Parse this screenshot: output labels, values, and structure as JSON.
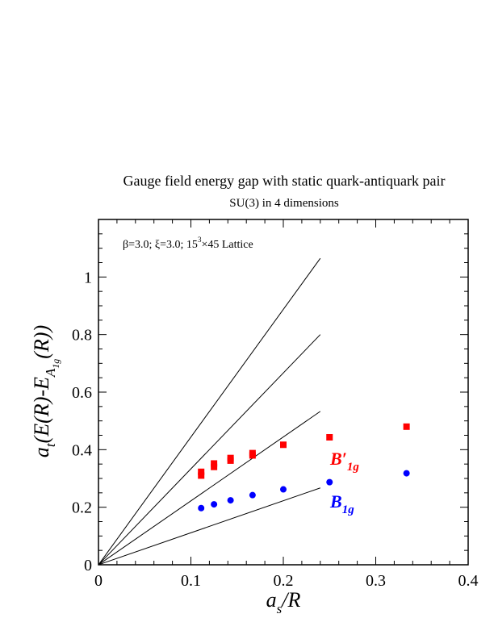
{
  "chart_data": {
    "type": "scatter",
    "title": "Gauge field energy gap with static quark-antiquark pair",
    "subtitle": "SU(3) in 4 dimensions",
    "annotation": {
      "prefix": "β=3.0;  ξ=3.0; 15",
      "superscript": "3",
      "suffix": "×45 Lattice"
    },
    "xlabel": {
      "main": "a",
      "sub": "s",
      "rest": "/R"
    },
    "ylabel": {
      "main": "a",
      "sub": "t",
      "rest": "(E(R)-E",
      "sub2": "A",
      "sub3": "1g",
      "tail": "(R))"
    },
    "xlim": [
      0,
      0.4
    ],
    "ylim": [
      0,
      1.2
    ],
    "x_ticks": [
      0,
      0.1,
      0.2,
      0.3,
      0.4
    ],
    "x_tick_labels": [
      "0",
      "0.1",
      "0.2",
      "0.3",
      "0.4"
    ],
    "y_ticks": [
      0,
      0.2,
      0.4,
      0.6,
      0.8,
      1.0
    ],
    "y_tick_labels": [
      "0",
      "0.2",
      "0.4",
      "0.6",
      "0.8",
      "1"
    ],
    "grid": false,
    "series": [
      {
        "name": "B'_1g",
        "label_main": "B′",
        "label_sub": "1g",
        "color": "#ff0000",
        "marker": "square",
        "points": [
          {
            "x": 0.1111,
            "y": 0.31
          },
          {
            "x": 0.1111,
            "y": 0.323
          },
          {
            "x": 0.125,
            "y": 0.34
          },
          {
            "x": 0.125,
            "y": 0.352
          },
          {
            "x": 0.1429,
            "y": 0.362
          },
          {
            "x": 0.1429,
            "y": 0.371
          },
          {
            "x": 0.1667,
            "y": 0.38
          },
          {
            "x": 0.1667,
            "y": 0.388
          },
          {
            "x": 0.2,
            "y": 0.417
          },
          {
            "x": 0.25,
            "y": 0.443
          },
          {
            "x": 0.3333,
            "y": 0.48
          }
        ]
      },
      {
        "name": "B_1g",
        "label_main": "B",
        "label_sub": "1g",
        "color": "#0000ff",
        "marker": "circle",
        "points": [
          {
            "x": 0.1111,
            "y": 0.197
          },
          {
            "x": 0.125,
            "y": 0.21
          },
          {
            "x": 0.1429,
            "y": 0.224
          },
          {
            "x": 0.1667,
            "y": 0.242
          },
          {
            "x": 0.2,
            "y": 0.262
          },
          {
            "x": 0.25,
            "y": 0.287
          },
          {
            "x": 0.3333,
            "y": 0.318
          }
        ]
      }
    ],
    "reference_lines": [
      {
        "x0": 0,
        "y0": 0,
        "x1": 0.24,
        "y1": 1.065
      },
      {
        "x0": 0,
        "y0": 0,
        "x1": 0.24,
        "y1": 0.8
      },
      {
        "x0": 0,
        "y0": 0,
        "x1": 0.24,
        "y1": 0.533
      },
      {
        "x0": 0,
        "y0": 0,
        "x1": 0.24,
        "y1": 0.267
      }
    ]
  }
}
